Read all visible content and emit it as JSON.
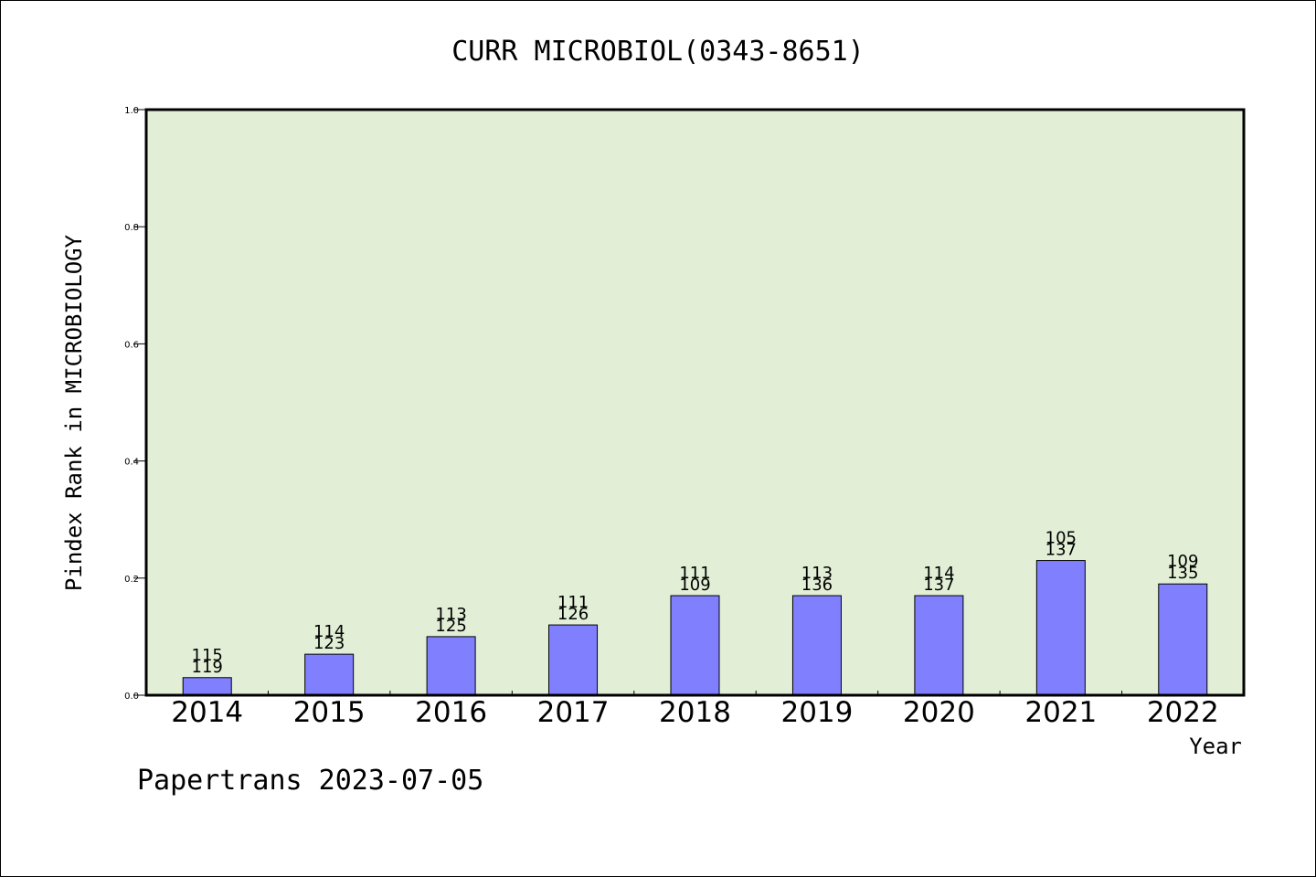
{
  "chart_data": {
    "type": "bar",
    "title": "CURR MICROBIOL(0343-8651)",
    "xlabel": "Year",
    "ylabel": "Pindex Rank in MICROBIOLOGY",
    "ylim": [
      0,
      1.0
    ],
    "yticks": [
      "0.0",
      "0.2",
      "0.4",
      "0.6",
      "0.8",
      "1.0"
    ],
    "categories": [
      "2014",
      "2015",
      "2016",
      "2017",
      "2018",
      "2019",
      "2020",
      "2021",
      "2022"
    ],
    "values": [
      0.03,
      0.07,
      0.1,
      0.12,
      0.17,
      0.17,
      0.17,
      0.23,
      0.19
    ],
    "labels_top": [
      "115",
      "114",
      "113",
      "111",
      "111",
      "113",
      "114",
      "105",
      "109"
    ],
    "labels_bottom": [
      "119",
      "123",
      "125",
      "126",
      "109",
      "136",
      "137",
      "137",
      "135"
    ],
    "grid": false,
    "colors": {
      "plot_bg": "#e2efd6",
      "bar": "#8080ff"
    }
  },
  "footer": "Papertrans 2023-07-05"
}
